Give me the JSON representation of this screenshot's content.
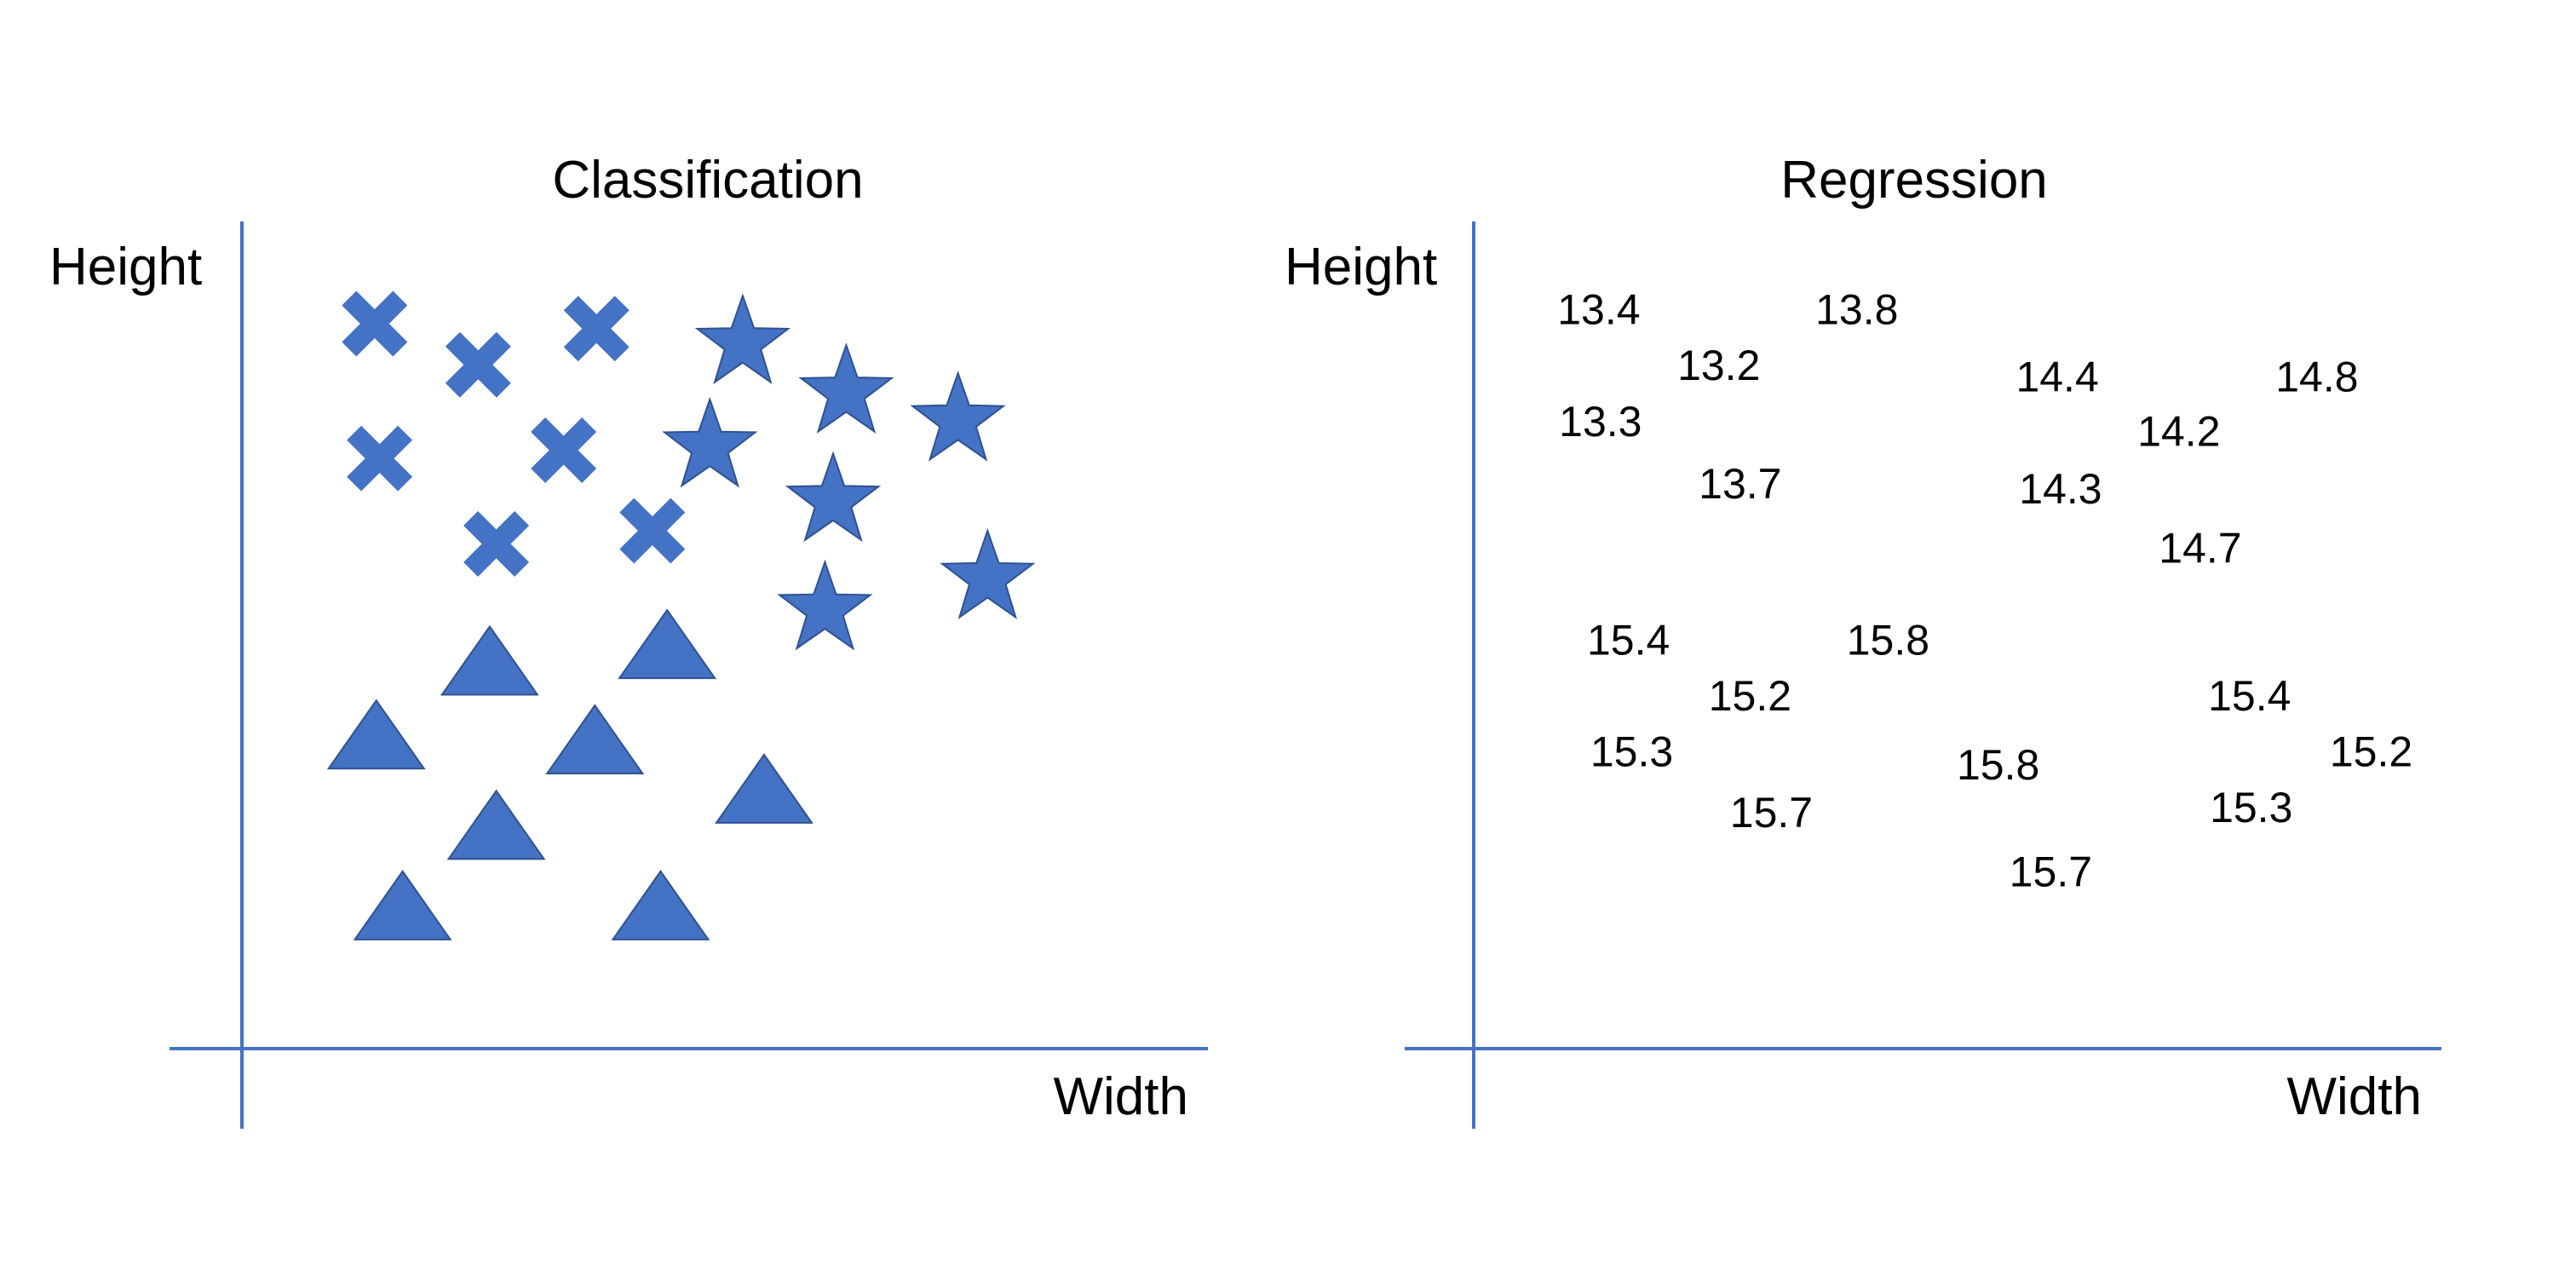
{
  "accent_color": "#4472C4",
  "left_panel": {
    "title": "Classification",
    "y_label": "Height",
    "x_label": "Width",
    "classes": [
      {
        "marker": "x-cross",
        "count": 7
      },
      {
        "marker": "star",
        "count": 7
      },
      {
        "marker": "triangle",
        "count": 8
      }
    ]
  },
  "right_panel": {
    "title": "Regression",
    "y_label": "Height",
    "x_label": "Width",
    "values": [
      "13.4",
      "13.8",
      "13.2",
      "14.4",
      "14.8",
      "13.3",
      "14.2",
      "13.7",
      "14.3",
      "14.7",
      "15.4",
      "15.8",
      "15.2",
      "15.4",
      "15.3",
      "15.2",
      "15.8",
      "15.7",
      "15.3",
      "15.7"
    ]
  }
}
